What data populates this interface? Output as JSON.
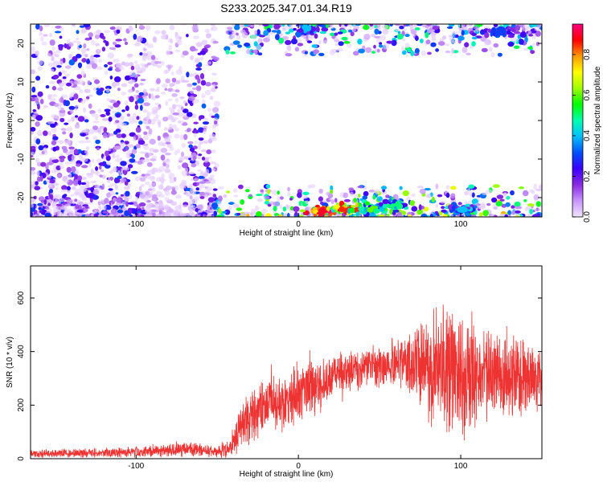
{
  "page": {
    "title": "S233.2025.347.01.34.R19"
  },
  "chart_data": [
    {
      "type": "heatmap",
      "title": "S233.2025.347.01.34.R19",
      "xlabel": "Height of straight line (km)",
      "ylabel": "Frequency (Hz)",
      "xlim": [
        -165,
        150
      ],
      "ylim": [
        -25,
        25
      ],
      "xticks": [
        -100,
        0,
        100
      ],
      "yticks": [
        -20,
        -10,
        0,
        10,
        20
      ],
      "colorbar": {
        "label": "Normalized spectral amplitude",
        "range": [
          0,
          0.95
        ],
        "ticks": [
          0.0,
          0.2,
          0.4,
          0.6,
          0.8
        ],
        "colors": [
          "#f0e6ff",
          "#c896ff",
          "#8a2be2",
          "#3b00ff",
          "#0050ff",
          "#00bfff",
          "#00ffb0",
          "#00ff00",
          "#a0ff00",
          "#ffff00",
          "#ff9900",
          "#ff0000",
          "#ff007f"
        ]
      },
      "regions": [
        {
          "x": [
            -165,
            -50
          ],
          "y": [
            -25,
            25
          ],
          "density": "dense",
          "amplitude": 0.15
        },
        {
          "x": [
            -50,
            150
          ],
          "y": [
            -25,
            -17
          ],
          "density": "dense",
          "amplitude": 0.35
        },
        {
          "x": [
            -45,
            150
          ],
          "y": [
            17,
            25
          ],
          "density": "dense",
          "amplitude": 0.25
        }
      ],
      "hotspots": [
        {
          "x": 15,
          "y": -23.5,
          "amplitude": 0.9
        },
        {
          "x": 30,
          "y": -23,
          "amplitude": 0.85
        },
        {
          "x": 45,
          "y": -23,
          "amplitude": 0.6
        },
        {
          "x": 60,
          "y": -22,
          "amplitude": 0.5
        },
        {
          "x": 100,
          "y": -23,
          "amplitude": 0.4
        },
        {
          "x": 5,
          "y": 23.5,
          "amplitude": 0.4
        },
        {
          "x": 125,
          "y": 23,
          "amplitude": 0.3
        }
      ]
    },
    {
      "type": "line",
      "xlabel": "Height of straight line (km)",
      "ylabel": "SNR (10 * v/v)",
      "xlim": [
        -165,
        150
      ],
      "ylim": [
        0,
        720
      ],
      "xticks": [
        -100,
        0,
        100
      ],
      "yticks": [
        0,
        200,
        400,
        600
      ],
      "color": "#ee3333",
      "envelope": [
        {
          "x": -165,
          "mean": 20,
          "spread": 15
        },
        {
          "x": -120,
          "mean": 22,
          "spread": 15
        },
        {
          "x": -90,
          "mean": 28,
          "spread": 20
        },
        {
          "x": -70,
          "mean": 38,
          "spread": 28
        },
        {
          "x": -50,
          "mean": 25,
          "spread": 18
        },
        {
          "x": -42,
          "mean": 40,
          "spread": 40
        },
        {
          "x": -35,
          "mean": 130,
          "spread": 80
        },
        {
          "x": -20,
          "mean": 200,
          "spread": 100
        },
        {
          "x": -5,
          "mean": 230,
          "spread": 110
        },
        {
          "x": 10,
          "mean": 270,
          "spread": 100
        },
        {
          "x": 25,
          "mean": 320,
          "spread": 70
        },
        {
          "x": 45,
          "mean": 345,
          "spread": 70
        },
        {
          "x": 65,
          "mean": 360,
          "spread": 90
        },
        {
          "x": 80,
          "mean": 340,
          "spread": 170
        },
        {
          "x": 95,
          "mean": 330,
          "spread": 240
        },
        {
          "x": 110,
          "mean": 320,
          "spread": 180
        },
        {
          "x": 125,
          "mean": 310,
          "spread": 150
        },
        {
          "x": 150,
          "mean": 300,
          "spread": 120
        }
      ]
    }
  ]
}
